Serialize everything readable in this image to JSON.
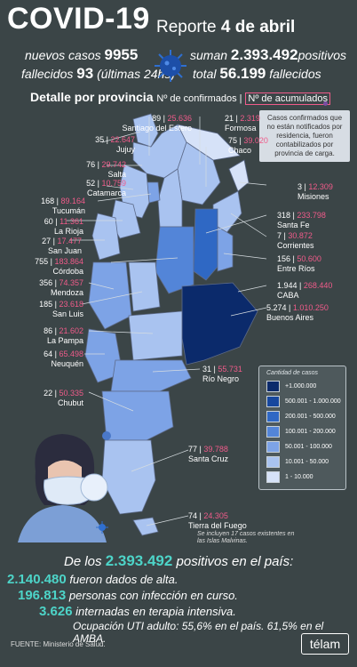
{
  "header": {
    "title": "COVID-19",
    "report_prefix": "Reporte",
    "report_date": "4 de abril",
    "nuevos_label": "nuevos casos",
    "nuevos_value": "9955",
    "suman_label": "suman",
    "suman_value": "2.393.492",
    "positivos_label": "positivos",
    "fallecidos_label": "fallecidos",
    "fallecidos_value": "93",
    "ultimas_label": "(últimas 24hs)",
    "total_label": "total",
    "total_value": "56.199",
    "fallecidos_total_label": "fallecidos"
  },
  "detail": {
    "title": "Detalle por provincia",
    "confirmados": "Nº de confirmados |",
    "acumulados": "Nº de acumulados"
  },
  "note": "Casos confirmados que no están notificados por residencia, fueron contabilizados por provincia de carga.",
  "provinces": [
    {
      "name": "Santiago del Estero",
      "confirmed": "89",
      "accumulated": "25.636"
    },
    {
      "name": "Formosa",
      "confirmed": "21",
      "accumulated": "2.319"
    },
    {
      "name": "Jujuy",
      "confirmed": "35",
      "accumulated": "22.647"
    },
    {
      "name": "Chaco",
      "confirmed": "75",
      "accumulated": "39.020"
    },
    {
      "name": "Salta",
      "confirmed": "76",
      "accumulated": "29.742"
    },
    {
      "name": "Catamarca",
      "confirmed": "52",
      "accumulated": "10.759"
    },
    {
      "name": "Misiones",
      "confirmed": "3",
      "accumulated": "12.309"
    },
    {
      "name": "Tucumán",
      "confirmed": "168",
      "accumulated": "89.164"
    },
    {
      "name": "La Rioja",
      "confirmed": "60",
      "accumulated": "11.361"
    },
    {
      "name": "Santa Fe",
      "confirmed": "318",
      "accumulated": "233.798"
    },
    {
      "name": "Corrientes",
      "confirmed": "7",
      "accumulated": "30.872"
    },
    {
      "name": "San Juan",
      "confirmed": "27",
      "accumulated": "17.477"
    },
    {
      "name": "Córdoba",
      "confirmed": "755",
      "accumulated": "183.864"
    },
    {
      "name": "Entre Ríos",
      "confirmed": "156",
      "accumulated": "50.600"
    },
    {
      "name": "Mendoza",
      "confirmed": "356",
      "accumulated": "74.357"
    },
    {
      "name": "CABA",
      "confirmed": "1.944",
      "accumulated": "268.440"
    },
    {
      "name": "San Luis",
      "confirmed": "185",
      "accumulated": "23.618"
    },
    {
      "name": "Buenos Aires",
      "confirmed": "5.274",
      "accumulated": "1.010.250"
    },
    {
      "name": "La Pampa",
      "confirmed": "86",
      "accumulated": "21.602"
    },
    {
      "name": "Neuquén",
      "confirmed": "64",
      "accumulated": "65.498"
    },
    {
      "name": "Río Negro",
      "confirmed": "31",
      "accumulated": "55.731"
    },
    {
      "name": "Chubut",
      "confirmed": "22",
      "accumulated": "50.335"
    },
    {
      "name": "Santa Cruz",
      "confirmed": "77",
      "accumulated": "39.788"
    },
    {
      "name": "Tierra del Fuego",
      "confirmed": "74",
      "accumulated": "24.305"
    }
  ],
  "malvinas_note": "Se incluyen 17 casos existentes en las Islas Malvinas.",
  "legend": {
    "title": "Cantidad de casos",
    "items": [
      {
        "label": "+1.000.000",
        "color": "#0b2a6b"
      },
      {
        "label": "500.001 - 1.000.000",
        "color": "#17479e"
      },
      {
        "label": "200.001 - 500.000",
        "color": "#2f68c4"
      },
      {
        "label": "100.001 - 200.000",
        "color": "#5385d8"
      },
      {
        "label": "50.001 - 100.000",
        "color": "#7da3e6"
      },
      {
        "label": "10.001 - 50.000",
        "color": "#a9c3f0"
      },
      {
        "label": "1 - 10.000",
        "color": "#d6e2f8"
      }
    ]
  },
  "summary": {
    "prefix": "De los",
    "total": "2.393.492",
    "suffix": "positivos en el país:",
    "rows": [
      {
        "value": "2.140.480",
        "text": "fueron dados de alta."
      },
      {
        "value": "196.813",
        "text": "personas con infección en curso."
      },
      {
        "value": "3.626",
        "text": "internadas en terapia intensiva."
      }
    ],
    "uti": "Ocupación UTI adulto: 55,6% en el país. 61,5% en el AMBA."
  },
  "footer": {
    "source": "FUENTE: Ministerio de Salud.",
    "brand": "télam"
  }
}
